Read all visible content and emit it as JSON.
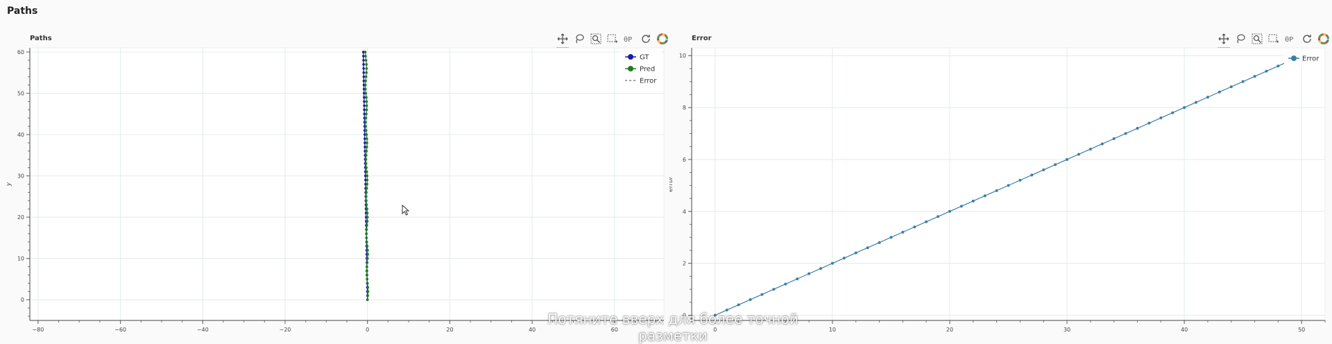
{
  "page": {
    "title": "Paths"
  },
  "toolbar_icons": [
    "pan-icon",
    "lasso-select-icon",
    "zoom-icon",
    "box-select-icon",
    "zoom-reset-icon",
    "refresh-icon",
    "bokeh-logo-icon"
  ],
  "colors": {
    "grid": "#e3ece6",
    "gt": "#1a1aa6",
    "pred": "#1f7a1f",
    "error_line": "#c0392b",
    "error_series": "#3b7ea6"
  },
  "overlay": {
    "text": "Потяните вверх для более точной разметки"
  },
  "chart_data": [
    {
      "type": "line",
      "title": "Paths",
      "xlabel": "",
      "ylabel": "y",
      "xlim": [
        -82,
        72
      ],
      "ylim": [
        -5,
        61
      ],
      "xticks": [
        "-80",
        "-60",
        "-40",
        "-20",
        "0",
        "20",
        "40",
        "60"
      ],
      "yticks": [
        "0",
        "10",
        "20",
        "30",
        "40",
        "50",
        "60"
      ],
      "grid": true,
      "legend_position": "top-right",
      "series": [
        {
          "name": "GT",
          "kind": "line-marker"
        },
        {
          "name": "Pred",
          "kind": "line-marker"
        },
        {
          "name": "Error",
          "kind": "dashed"
        }
      ],
      "x_gt_range": [
        -1,
        0
      ],
      "x_pred_range": [
        -0.5,
        0
      ],
      "y_range": [
        0,
        60
      ]
    },
    {
      "type": "line",
      "title": "Error",
      "xlabel": "",
      "ylabel": "error",
      "xlim": [
        -2,
        52
      ],
      "ylim": [
        -0.2,
        10.3
      ],
      "xticks": [
        "0",
        "10",
        "20",
        "30",
        "40",
        "50"
      ],
      "yticks": [
        "0",
        "2",
        "4",
        "6",
        "8",
        "10"
      ],
      "grid": true,
      "legend_position": "top-right",
      "series": [
        {
          "name": "Error",
          "x_start": 0,
          "x_end": 50,
          "slope": 0.2
        }
      ]
    }
  ]
}
